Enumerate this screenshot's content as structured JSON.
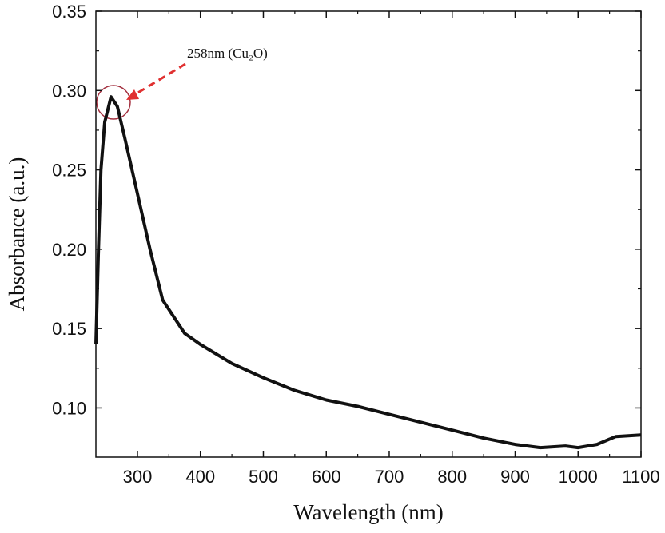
{
  "chart_data": {
    "type": "line",
    "xlabel": "Wavelength (nm)",
    "ylabel": "Absorbance (a.u.)",
    "annotation": "258nm (Cu₂O)",
    "x": [
      234,
      238,
      242,
      248,
      258,
      268,
      280,
      300,
      320,
      340,
      375,
      400,
      450,
      500,
      550,
      600,
      650,
      700,
      750,
      800,
      850,
      900,
      940,
      980,
      1000,
      1030,
      1060,
      1100
    ],
    "values": [
      0.14,
      0.2,
      0.25,
      0.28,
      0.296,
      0.29,
      0.27,
      0.235,
      0.2,
      0.168,
      0.147,
      0.14,
      0.128,
      0.119,
      0.111,
      0.105,
      0.101,
      0.096,
      0.091,
      0.086,
      0.081,
      0.077,
      0.075,
      0.076,
      0.075,
      0.077,
      0.082,
      0.083
    ],
    "color": "#111111",
    "xlim": [
      234,
      1100
    ],
    "ylim": [
      0.069,
      0.35
    ],
    "xticks": [
      300,
      400,
      500,
      600,
      700,
      800,
      900,
      1000,
      1100
    ],
    "yticks": [
      {
        "value": 0.1,
        "label": "0.10"
      },
      0.15,
      {
        "value": 0.2,
        "label": "0.20"
      },
      0.25,
      {
        "value": 0.3,
        "label": "0.30"
      },
      0.35
    ]
  }
}
